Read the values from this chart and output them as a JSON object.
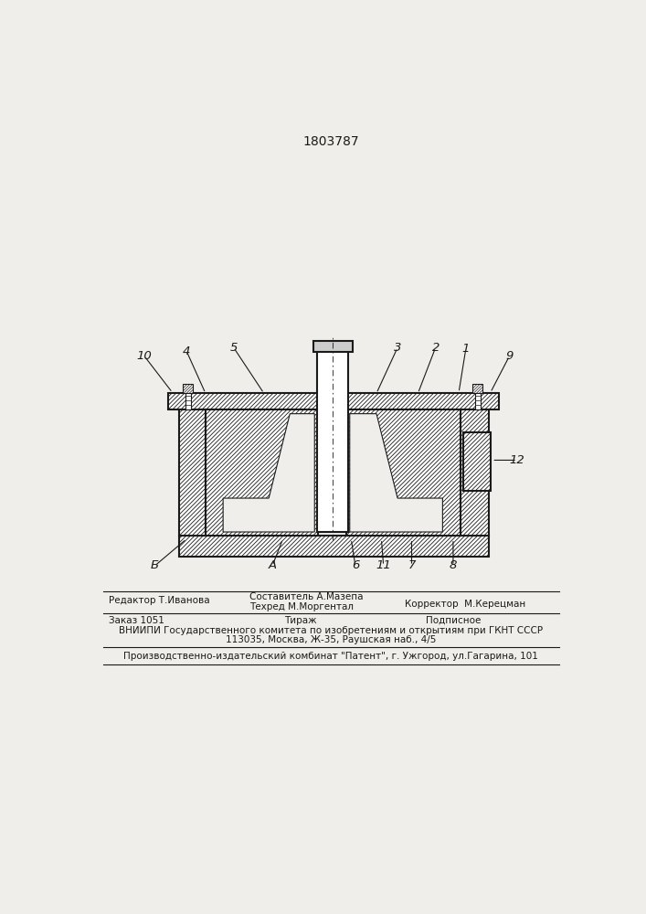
{
  "patent_number": "1803787",
  "bg_color": "#f0eeea",
  "line_color": "#1a1a1a",
  "footer": {
    "editor": "Редактор Т.Иванова",
    "compiler1": "Составитель А.Мазепа",
    "techred": "Техред М.Моргентал",
    "corrector": "Корректор  М.Керецман",
    "order": "Заказ 1051",
    "tirazh": "Тираж",
    "podpisnoe": "Подписное",
    "org1": "ВНИИПИ Государственного комитета по изобретениям и открытиям при ГКНТ СССР",
    "org2": "113035, Москва, Ж-35, Раушская наб., 4/5",
    "printer": "Производственно-издательский комбинат \"Патент\", г. Ужгород, ул.Гагарина, 101"
  }
}
